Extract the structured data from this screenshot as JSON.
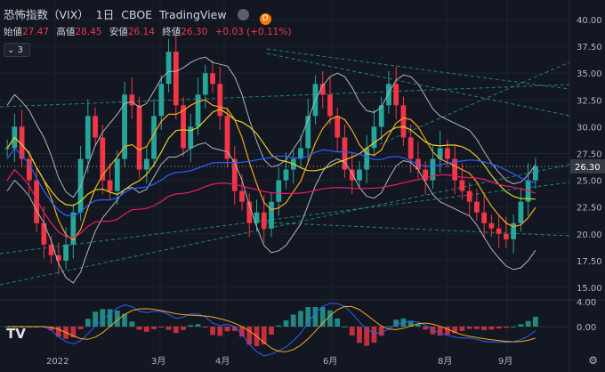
{
  "header": {
    "symbol": "恐怖指数（VIX）",
    "interval": "1日",
    "exchange": "CBOE",
    "provider": "TradingView",
    "badge_letter": "D"
  },
  "ohlc": {
    "open_label": "始値",
    "open": "27.47",
    "high_label": "高値",
    "high": "28.45",
    "low_label": "安値",
    "low": "26.14",
    "close_label": "終値",
    "close": "26.30",
    "change": "+0.03 (+0.11%)"
  },
  "indicators_toggle": "3",
  "price_axis": [
    "40.00",
    "37.50",
    "35.00",
    "32.50",
    "30.00",
    "27.50",
    "25.00",
    "22.50",
    "20.00",
    "17.50",
    "15.00"
  ],
  "current_price": "26.30",
  "osc_axis": [
    "4.00",
    "0.00"
  ],
  "time_axis": [
    "2022",
    "3月",
    "4月",
    "6月",
    "8月",
    "9月"
  ],
  "colors": {
    "up": "#26a69a",
    "down": "#f23645",
    "bg": "#131722",
    "grid": "#1e222d",
    "band": "#b2b5be",
    "ma_orange": "#f5a623",
    "ma_yellow": "#e6d02a",
    "ma_blue": "#2962ff",
    "ma_pink": "#e91e63",
    "trend": "#26a69a"
  },
  "chart_data": {
    "type": "candlestick",
    "ylim": [
      14.0,
      41.0
    ],
    "x_ticks": [
      "2022",
      "3月",
      "4月",
      "6月",
      "8月",
      "9月"
    ],
    "close_series": [
      28,
      30,
      27,
      25,
      21,
      19,
      18,
      17.5,
      19,
      22,
      27,
      31,
      29,
      25,
      24,
      27,
      33,
      32,
      26,
      27,
      31,
      34,
      37,
      32,
      28,
      30,
      33,
      35,
      34,
      31,
      27,
      24,
      23,
      21,
      22,
      20.5,
      23,
      25,
      26,
      27,
      28,
      31,
      34,
      33,
      31,
      29,
      26,
      25,
      26,
      28,
      30,
      32,
      34,
      32,
      29,
      27,
      26,
      25,
      27,
      28,
      27,
      25,
      24,
      23,
      22,
      21,
      20.5,
      20,
      19.5,
      21,
      23,
      25,
      26.3
    ]
  },
  "settings_icon": "gear-icon",
  "logo": "TV"
}
